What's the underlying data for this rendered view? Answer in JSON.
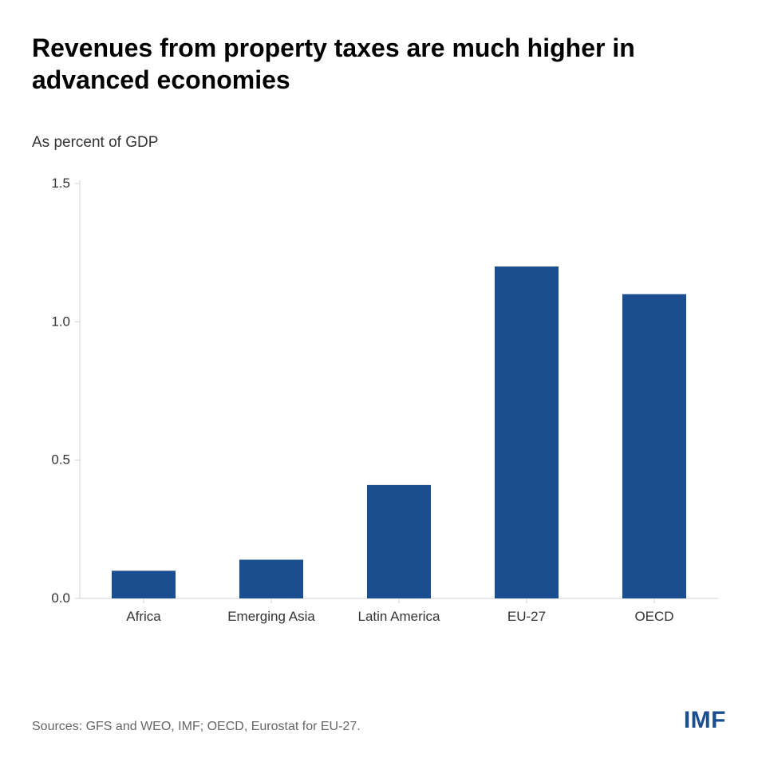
{
  "title": "Revenues from property taxes are much higher in advanced economies",
  "subtitle": "As percent of GDP",
  "source": "Sources: GFS and WEO, IMF; OECD, Eurostat for EU-27.",
  "logo": "IMF",
  "chart": {
    "type": "bar",
    "categories": [
      "Africa",
      "Emerging Asia",
      "Latin America",
      "EU-27",
      "OECD"
    ],
    "values": [
      0.1,
      0.14,
      0.41,
      1.2,
      1.1
    ],
    "bar_color": "#1a4e8e",
    "background_color": "#ffffff",
    "axis_color": "#d0d0d0",
    "text_color": "#333333",
    "ylim": [
      0.0,
      1.5
    ],
    "yticks": [
      0.0,
      0.5,
      1.0,
      1.5
    ],
    "bar_width_ratio": 0.5,
    "title_fontsize": 32,
    "subtitle_fontsize": 19,
    "tick_fontsize": 17
  }
}
